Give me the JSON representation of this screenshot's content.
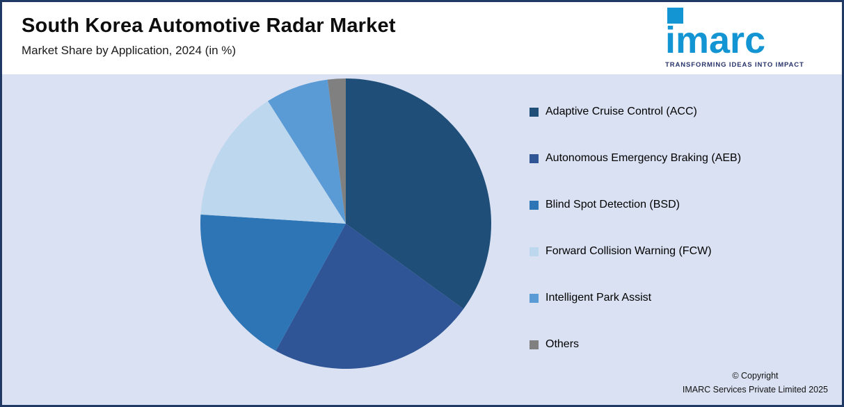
{
  "header": {
    "title": "South Korea Automotive Radar Market",
    "subtitle": "Market Share by Application, 2024 (in %)"
  },
  "logo": {
    "brand": "imarc",
    "tagline": "TRANSFORMING IDEAS INTO IMPACT",
    "brand_color": "#1495d3",
    "tagline_color": "#27336a"
  },
  "chart_data": {
    "type": "pie",
    "title": "South Korea Automotive Radar Market",
    "subtitle": "Market Share by Application, 2024 (in %)",
    "unit": "%",
    "labels": [
      "Adaptive Cruise Control (ACC)",
      "Autonomous Emergency Braking (AEB)",
      "Blind Spot Detection (BSD)",
      "Forward Collision Warning (FCW)",
      "Intelligent Park Assist",
      "Others"
    ],
    "values": [
      35,
      23,
      18,
      15,
      7,
      2
    ],
    "colors": [
      "#1f4e79",
      "#2f5597",
      "#2e75b6",
      "#bdd7ee",
      "#5b9bd5",
      "#808080"
    ],
    "start_angle_deg": -90,
    "direction": "clockwise",
    "legend_position": "right",
    "data_labels_shown": false
  },
  "footer": {
    "copyright_line1": "© Copyright",
    "copyright_line2": "IMARC Services Private Limited 2025"
  }
}
